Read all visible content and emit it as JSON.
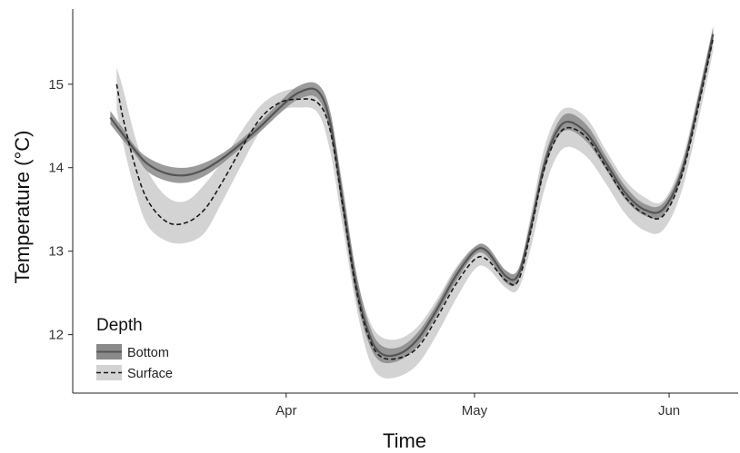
{
  "chart_data": {
    "type": "line",
    "xlabel": "Time",
    "ylabel": "Temperature (°C)",
    "x_tick_labels": [
      "Apr",
      "May",
      "Jun"
    ],
    "y_ticks": [
      12,
      13,
      14,
      15
    ],
    "x_tick_dates": [
      "04-01",
      "05-01",
      "06-01"
    ],
    "ylim": [
      11.3,
      15.9
    ],
    "grid": false,
    "legend": {
      "title": "Depth",
      "position": "bottom-left"
    },
    "series": [
      {
        "name": "Bottom",
        "style": "solid",
        "color": "#555555",
        "band_color": "#8a8a8a",
        "x": [
          "03-04",
          "03-06",
          "03-08",
          "03-10",
          "03-13",
          "03-16",
          "03-19",
          "03-22",
          "03-25",
          "03-28",
          "03-31",
          "04-03",
          "04-06",
          "04-08",
          "04-10",
          "04-12",
          "04-14",
          "04-16",
          "04-19",
          "04-22",
          "04-25",
          "04-28",
          "05-01",
          "05-03",
          "05-06",
          "05-08",
          "05-10",
          "05-12",
          "05-14",
          "05-16",
          "05-19",
          "05-22",
          "05-25",
          "05-28",
          "05-31",
          "06-03",
          "06-06",
          "06-08"
        ],
        "y": [
          14.6,
          14.4,
          14.2,
          14.04,
          13.93,
          13.91,
          13.98,
          14.12,
          14.3,
          14.5,
          14.72,
          14.9,
          14.92,
          14.55,
          13.6,
          12.65,
          12.05,
          11.78,
          11.77,
          11.95,
          12.3,
          12.7,
          13.0,
          13.0,
          12.7,
          12.72,
          13.3,
          14.0,
          14.42,
          14.55,
          14.4,
          14.05,
          13.7,
          13.5,
          13.5,
          13.95,
          14.9,
          15.6
        ],
        "lower": [
          14.52,
          14.33,
          14.15,
          13.95,
          13.84,
          13.82,
          13.9,
          14.06,
          14.25,
          14.44,
          14.65,
          14.82,
          14.83,
          14.42,
          13.45,
          12.5,
          11.93,
          11.68,
          11.69,
          11.87,
          12.23,
          12.63,
          12.95,
          12.94,
          12.62,
          12.65,
          13.22,
          13.92,
          14.33,
          14.45,
          14.3,
          13.97,
          13.62,
          13.43,
          13.43,
          13.88,
          14.82,
          15.5
        ],
        "upper": [
          14.68,
          14.47,
          14.25,
          14.12,
          14.02,
          14.0,
          14.06,
          14.18,
          14.35,
          14.56,
          14.79,
          14.98,
          15.0,
          14.68,
          13.75,
          12.8,
          12.17,
          11.88,
          11.85,
          12.03,
          12.37,
          12.77,
          13.05,
          13.06,
          12.77,
          12.79,
          13.38,
          14.08,
          14.5,
          14.65,
          14.5,
          14.13,
          13.78,
          13.57,
          13.57,
          14.02,
          14.98,
          15.68
        ]
      },
      {
        "name": "Surface",
        "style": "dashed",
        "color": "#1a1a1a",
        "band_color": "#d3d3d3",
        "x": [
          "03-05",
          "03-06",
          "03-08",
          "03-10",
          "03-13",
          "03-16",
          "03-19",
          "03-22",
          "03-25",
          "03-28",
          "03-31",
          "04-03",
          "04-06",
          "04-08",
          "04-10",
          "04-12",
          "04-14",
          "04-16",
          "04-19",
          "04-22",
          "04-25",
          "04-28",
          "05-01",
          "05-03",
          "05-06",
          "05-08",
          "05-10",
          "05-12",
          "05-14",
          "05-16",
          "05-19",
          "05-22",
          "05-25",
          "05-28",
          "05-31",
          "06-03",
          "06-06",
          "06-08"
        ],
        "y": [
          15.0,
          14.6,
          14.0,
          13.6,
          13.35,
          13.34,
          13.5,
          13.85,
          14.25,
          14.6,
          14.78,
          14.82,
          14.78,
          14.45,
          13.55,
          12.6,
          12.0,
          11.74,
          11.72,
          11.85,
          12.2,
          12.6,
          12.9,
          12.9,
          12.65,
          12.65,
          13.25,
          13.95,
          14.35,
          14.48,
          14.35,
          14.0,
          13.65,
          13.45,
          13.42,
          13.9,
          14.85,
          15.55
        ],
        "lower": [
          14.7,
          14.3,
          13.7,
          13.3,
          13.12,
          13.1,
          13.22,
          13.62,
          14.05,
          14.45,
          14.68,
          14.72,
          14.66,
          14.2,
          13.3,
          12.4,
          11.75,
          11.5,
          11.5,
          11.65,
          12.0,
          12.42,
          12.78,
          12.8,
          12.56,
          12.55,
          13.05,
          13.7,
          14.12,
          14.25,
          14.12,
          13.8,
          13.45,
          13.25,
          13.25,
          13.72,
          14.68,
          15.4
        ],
        "upper": [
          15.2,
          14.95,
          14.35,
          13.95,
          13.65,
          13.6,
          13.8,
          14.1,
          14.45,
          14.75,
          14.9,
          14.95,
          14.92,
          14.6,
          13.8,
          12.8,
          12.22,
          11.98,
          11.95,
          12.1,
          12.42,
          12.8,
          13.05,
          13.02,
          12.76,
          12.78,
          13.45,
          14.2,
          14.6,
          14.72,
          14.58,
          14.2,
          13.85,
          13.65,
          13.6,
          14.08,
          15.02,
          15.7
        ]
      }
    ]
  }
}
